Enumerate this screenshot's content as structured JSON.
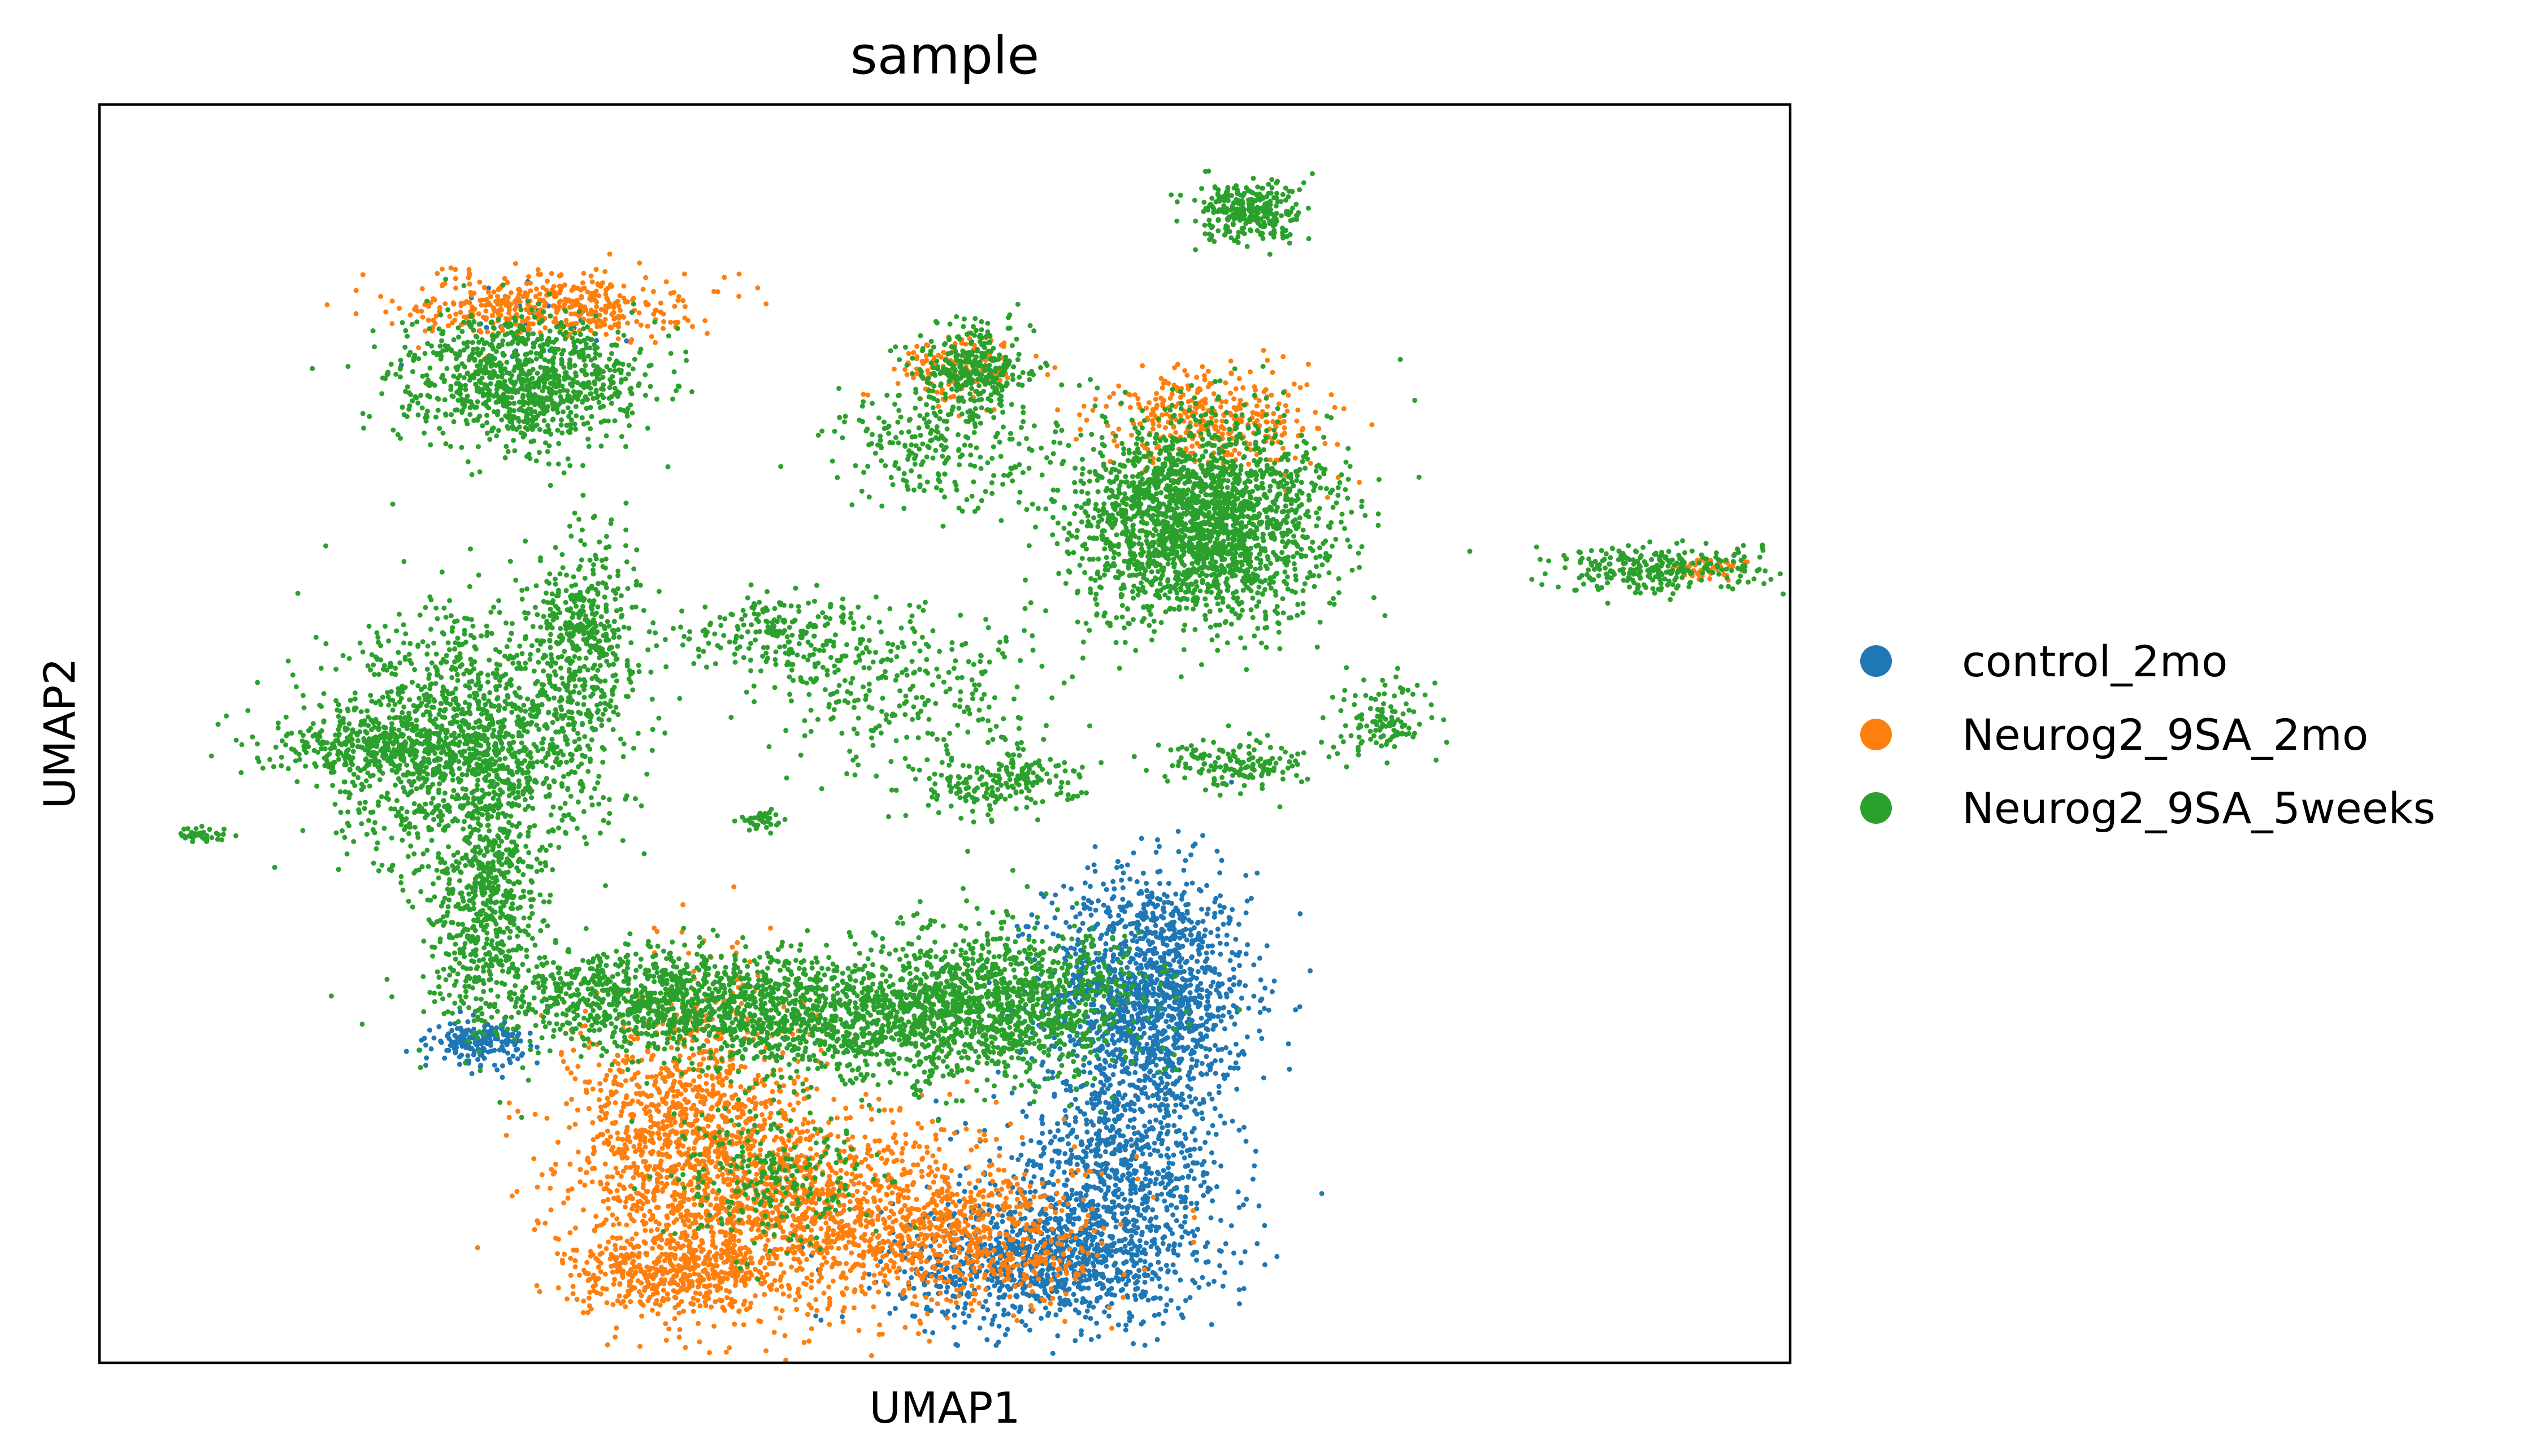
{
  "chart_data": {
    "type": "scatter",
    "title": "sample",
    "xlabel": "UMAP1",
    "ylabel": "UMAP2",
    "xlim": [
      0,
      100
    ],
    "ylim": [
      0,
      100
    ],
    "grid": false,
    "xticks": [],
    "yticks": [],
    "legend_position": "right",
    "series": [
      {
        "name": "control_2mo",
        "color": "#1f77b4",
        "clusters": [
          {
            "cx": 62,
            "cy": 29,
            "sx": 3.0,
            "sy": 5.0,
            "n": 1500
          },
          {
            "cx": 56,
            "cy": 8,
            "sx": 4.5,
            "sy": 2.5,
            "n": 1000
          },
          {
            "cx": 60,
            "cy": 15,
            "sx": 3.5,
            "sy": 3.5,
            "n": 700
          },
          {
            "cx": 22.5,
            "cy": 25.5,
            "sx": 1.3,
            "sy": 0.8,
            "n": 200
          },
          {
            "cx": 25,
            "cy": 83,
            "sx": 3.0,
            "sy": 1.5,
            "n": 30
          }
        ]
      },
      {
        "name": "Neurog2_9SA_2mo",
        "color": "#ff7f0e",
        "clusters": [
          {
            "cx": 35,
            "cy": 18,
            "sx": 3.5,
            "sy": 6.0,
            "n": 1300
          },
          {
            "cx": 42,
            "cy": 12,
            "sx": 5.5,
            "sy": 4.0,
            "n": 1100
          },
          {
            "cx": 52,
            "cy": 10,
            "sx": 4.0,
            "sy": 3.0,
            "n": 500
          },
          {
            "cx": 34,
            "cy": 7,
            "sx": 3.0,
            "sy": 1.5,
            "n": 400
          },
          {
            "cx": 26.5,
            "cy": 84,
            "sx": 4.0,
            "sy": 1.3,
            "n": 450
          },
          {
            "cx": 66,
            "cy": 75,
            "sx": 3.5,
            "sy": 2.0,
            "n": 350
          },
          {
            "cx": 51,
            "cy": 79,
            "sx": 1.8,
            "sy": 1.3,
            "n": 150
          },
          {
            "cx": 95,
            "cy": 63,
            "sx": 1.2,
            "sy": 0.5,
            "n": 50
          }
        ]
      },
      {
        "name": "Neurog2_9SA_5weeks",
        "color": "#2ca02c",
        "clusters": [
          {
            "cx": 22,
            "cy": 49,
            "sx": 4.0,
            "sy": 5.0,
            "n": 1500
          },
          {
            "cx": 16,
            "cy": 49,
            "sx": 3.0,
            "sy": 1.2,
            "n": 300
          },
          {
            "cx": 29,
            "cy": 58,
            "sx": 1.5,
            "sy": 4.0,
            "n": 400
          },
          {
            "cx": 23,
            "cy": 36,
            "sx": 1.5,
            "sy": 4.5,
            "n": 500
          },
          {
            "cx": 33,
            "cy": 29,
            "sx": 5.5,
            "sy": 2.0,
            "n": 1000
          },
          {
            "cx": 45,
            "cy": 27,
            "sx": 6.0,
            "sy": 2.5,
            "n": 1200
          },
          {
            "cx": 54,
            "cy": 29,
            "sx": 4.0,
            "sy": 3.0,
            "n": 900
          },
          {
            "cx": 40,
            "cy": 15,
            "sx": 3.0,
            "sy": 3.0,
            "n": 250
          },
          {
            "cx": 25,
            "cy": 78,
            "sx": 3.5,
            "sy": 2.5,
            "n": 1000
          },
          {
            "cx": 65,
            "cy": 67,
            "sx": 3.8,
            "sy": 4.0,
            "n": 2200
          },
          {
            "cx": 51.5,
            "cy": 79,
            "sx": 1.6,
            "sy": 1.8,
            "n": 300
          },
          {
            "cx": 68,
            "cy": 91.5,
            "sx": 1.5,
            "sy": 1.2,
            "n": 300
          },
          {
            "cx": 48,
            "cy": 53,
            "sx": 4.5,
            "sy": 3.5,
            "n": 300
          },
          {
            "cx": 40,
            "cy": 58,
            "sx": 2.5,
            "sy": 1.5,
            "n": 200
          },
          {
            "cx": 53,
            "cy": 46,
            "sx": 2.5,
            "sy": 1.2,
            "n": 200
          },
          {
            "cx": 67,
            "cy": 47.5,
            "sx": 2.0,
            "sy": 1.0,
            "n": 150
          },
          {
            "cx": 92,
            "cy": 63,
            "sx": 3.0,
            "sy": 1.0,
            "n": 280
          },
          {
            "cx": 76,
            "cy": 51,
            "sx": 1.5,
            "sy": 1.8,
            "n": 120
          },
          {
            "cx": 6,
            "cy": 42,
            "sx": 0.8,
            "sy": 0.3,
            "n": 40
          },
          {
            "cx": 39,
            "cy": 43,
            "sx": 0.6,
            "sy": 0.4,
            "n": 40
          },
          {
            "cx": 50,
            "cy": 73,
            "sx": 3.0,
            "sy": 2.5,
            "n": 250
          }
        ]
      }
    ]
  }
}
